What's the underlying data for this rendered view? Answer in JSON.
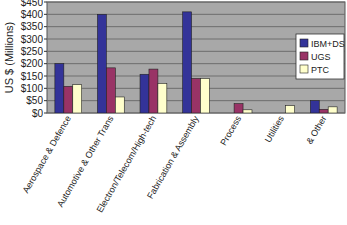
{
  "chart_data": {
    "type": "bar",
    "y_label": "US $ (Millions)",
    "categories": [
      "Aerospace & Defence",
      "Automotive & Other Trans",
      "Electron/Telecom/High-tech",
      "Fabrication & Assembly",
      "Process",
      "Utilities",
      "& Other"
    ],
    "series": [
      {
        "name": "IBM+DS",
        "color": "#333399",
        "values": [
          200,
          400,
          157,
          410,
          0,
          0,
          50
        ]
      },
      {
        "name": "UGS",
        "color": "#993366",
        "values": [
          108,
          183,
          178,
          140,
          38,
          0,
          15
        ]
      },
      {
        "name": "PTC",
        "color": "#ffffcc",
        "values": [
          115,
          65,
          120,
          140,
          13,
          30,
          25
        ]
      }
    ],
    "ylim": [
      0,
      450
    ],
    "yticks": [
      {
        "value": 0,
        "label": "$0"
      },
      {
        "value": 50,
        "label": "$50"
      },
      {
        "value": 100,
        "label": "$100"
      },
      {
        "value": 150,
        "label": "$150"
      },
      {
        "value": 200,
        "label": "$200"
      },
      {
        "value": 250,
        "label": "$250"
      },
      {
        "value": 300,
        "label": "$300"
      },
      {
        "value": 350,
        "label": "$350"
      },
      {
        "value": 400,
        "label": "$400"
      },
      {
        "value": 450,
        "label": "$450"
      }
    ],
    "grid": true,
    "legend": "right"
  }
}
